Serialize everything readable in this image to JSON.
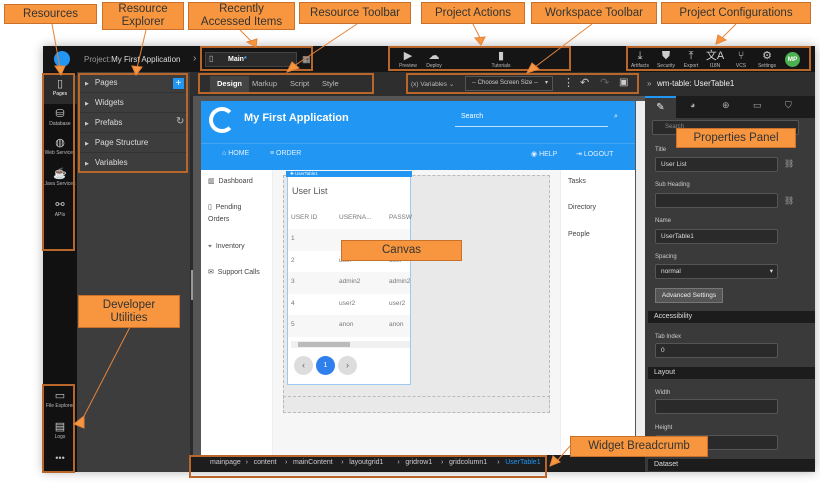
{
  "header": {
    "project_prefix": "Project:",
    "project_name": "My First Application",
    "recent_page": "Main",
    "recent_page_modified": "*"
  },
  "project_actions": [
    {
      "label": "Preview",
      "icon": "play-icon"
    },
    {
      "label": "Deploy",
      "icon": "cloud-upload-icon"
    },
    {
      "label": "Tutorials",
      "icon": "book-icon"
    }
  ],
  "project_configs": [
    {
      "label": "Artifacts",
      "icon": "download-icon"
    },
    {
      "label": "Security",
      "icon": "shield-icon"
    },
    {
      "label": "Export",
      "icon": "upload-icon"
    },
    {
      "label": "I18N",
      "icon": "translate-icon"
    },
    {
      "label": "VCS",
      "icon": "branch-icon"
    },
    {
      "label": "Settings",
      "icon": "gear-icon"
    }
  ],
  "avatar": {
    "initials": "MP",
    "color": "#4caf50"
  },
  "resources": [
    {
      "label": "Pages",
      "icon": "page-icon",
      "selected": true
    },
    {
      "label": "Database",
      "icon": "database-icon"
    },
    {
      "label": "Web Services",
      "icon": "globe-icon"
    },
    {
      "label": "Java Services",
      "icon": "coffee-icon"
    },
    {
      "label": "APIs",
      "icon": "api-icon"
    }
  ],
  "dev_utilities": [
    {
      "label": "File Explorer",
      "icon": "folder-icon"
    },
    {
      "label": "Logs",
      "icon": "file-icon"
    },
    {
      "label": "•••",
      "icon": "more-icon"
    }
  ],
  "explorer": [
    {
      "label": "Pages"
    },
    {
      "label": "Widgets"
    },
    {
      "label": "Prefabs"
    },
    {
      "label": "Page Structure"
    },
    {
      "label": "Variables"
    }
  ],
  "resource_toolbar": {
    "tabs": [
      "Design",
      "Markup",
      "Script",
      "Style"
    ],
    "active": "Design"
  },
  "workspace_toolbar": {
    "variables": "(x) Variables",
    "screen_size": "-- Choose Screen Size --"
  },
  "app_preview": {
    "title": "My First Application",
    "search_placeholder": "Search",
    "nav": [
      "HOME",
      "ORDER"
    ],
    "nav_right": [
      "HELP",
      "LOGOUT"
    ],
    "side_nav": [
      "Dashboard",
      "Pending Orders",
      "Inventory",
      "Support Calls"
    ],
    "right_links": [
      "Tasks",
      "Directory",
      "People"
    ],
    "table": {
      "tag": "UserTable1",
      "title": "User List",
      "columns": [
        "USER ID",
        "USERNA...",
        "PASSW"
      ],
      "rows": [
        [
          "1",
          "",
          ""
        ],
        [
          "2",
          "user",
          "user"
        ],
        [
          "3",
          "admin2",
          "admin2"
        ],
        [
          "4",
          "user2",
          "user2"
        ],
        [
          "5",
          "anon",
          "anon"
        ]
      ],
      "current_page": "1"
    }
  },
  "properties": {
    "header": "wm-table: UserTable1",
    "search_placeholder": "Search",
    "title_label": "Title",
    "title_value": "User List",
    "subheading_label": "Sub Heading",
    "subheading_value": "",
    "name_label": "Name",
    "name_value": "UserTable1",
    "spacing_label": "Spacing",
    "spacing_value": "normal",
    "advanced_button": "Advanced Settings",
    "accessibility_section": "Accessibility",
    "tabindex_label": "Tab Index",
    "tabindex_value": "0",
    "layout_section": "Layout",
    "width_label": "Width",
    "height_label": "Height",
    "dataset_section": "Dataset"
  },
  "breadcrumb": [
    "mainpage",
    "content",
    "mainContent",
    "layoutgrid1",
    "gridrow1",
    "gridcolumn1",
    "UserTable1"
  ],
  "annotations": {
    "resources": "Resources",
    "resource_explorer": "Resource Explorer",
    "recently_accessed": "Recently Accessed Items",
    "resource_toolbar": "Resource Toolbar",
    "project_actions": "Project Actions",
    "workspace_toolbar": "Workspace Toolbar",
    "project_configurations": "Project Configurations",
    "properties_panel": "Properties Panel",
    "canvas": "Canvas",
    "widget_breadcrumb": "Widget Breadcrumb",
    "developer_utilities": "Developer Utilities"
  },
  "colors": {
    "annotation": "#f7963e",
    "annotation_border": "#b8662a",
    "brand_blue": "#2196f3"
  }
}
